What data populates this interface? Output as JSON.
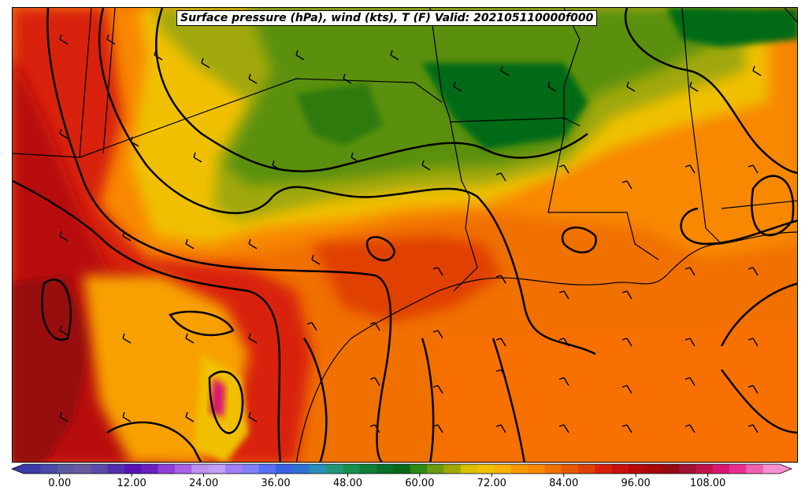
{
  "title": "Surface pressure (hPa), wind (kts), T (F) Valid: 202105110000f000",
  "colorbar": {
    "ticks": [
      "0.00",
      "12.00",
      "24.00",
      "36.00",
      "48.00",
      "60.00",
      "72.00",
      "84.00",
      "96.00",
      "108.00"
    ],
    "tick_values": [
      0,
      12,
      24,
      36,
      48,
      60,
      72,
      84,
      96,
      108
    ],
    "min": -6,
    "max": 120,
    "step": 3,
    "colors": [
      "#3a3aa8",
      "#4a4aa8",
      "#5a5aa0",
      "#6a5aa0",
      "#5a4aa8",
      "#5030b0",
      "#5a10b8",
      "#6a20c0",
      "#9040d8",
      "#a860e8",
      "#c090f0",
      "#c0a0f8",
      "#a080f8",
      "#8080ff",
      "#5870f8",
      "#3860e8",
      "#3070d0",
      "#2890b8",
      "#209878",
      "#189050",
      "#108038",
      "#087028",
      "#066a18",
      "#2e8a10",
      "#6a9a10",
      "#a0a808",
      "#d8c000",
      "#f0c000",
      "#f8b000",
      "#f89800",
      "#f88800",
      "#f07000",
      "#e85800",
      "#e04000",
      "#d82008",
      "#c81010",
      "#b80808",
      "#a80808",
      "#980810",
      "#a01030",
      "#c01048",
      "#d81870",
      "#e83090",
      "#f060b0",
      "#f890d0"
    ]
  },
  "map": {
    "background_color": "#f07000",
    "contour_color": "#000000",
    "wind_barb_color": "#000000"
  }
}
